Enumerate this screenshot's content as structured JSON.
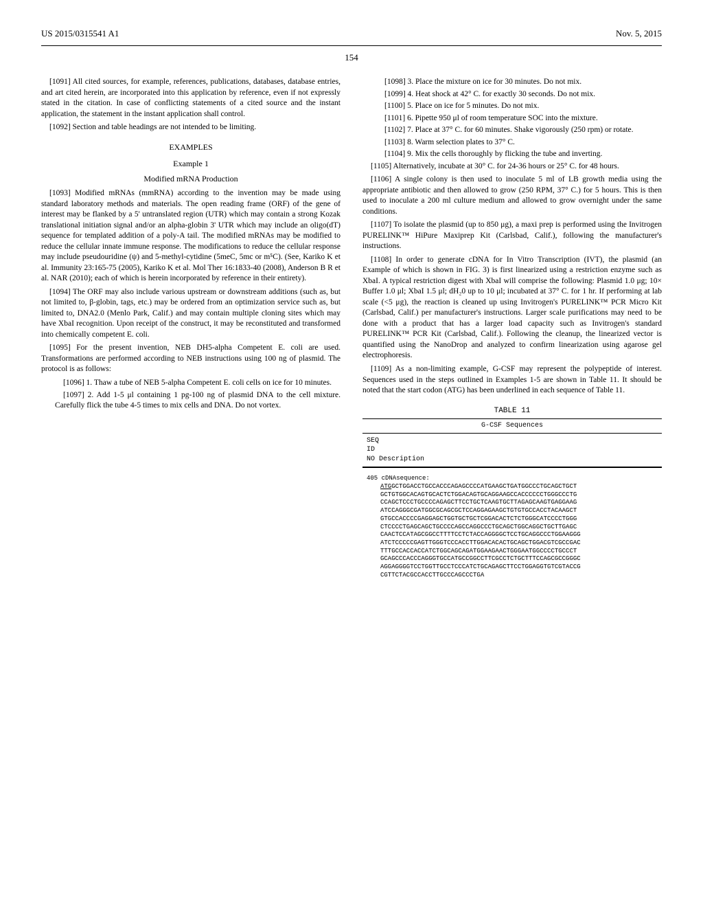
{
  "header": {
    "pub_number": "US 2015/0315541 A1",
    "date": "Nov. 5, 2015"
  },
  "page_number": "154",
  "left_column": {
    "p1091": "[1091]   All cited sources, for example, references, publications, databases, database entries, and art cited herein, are incorporated into this application by reference, even if not expressly stated in the citation. In case of conflicting statements of a cited source and the instant application, the statement in the instant application shall control.",
    "p1092": "[1092]   Section and table headings are not intended to be limiting.",
    "examples_heading": "EXAMPLES",
    "example_heading": "Example 1",
    "example_title": "Modified mRNA Production",
    "p1093": "[1093]   Modified mRNAs (mmRNA) according to the invention may be made using standard laboratory methods and materials. The open reading frame (ORF) of the gene of interest may be flanked by a 5' untranslated region (UTR) which may contain a strong Kozak translational initiation signal and/or an alpha-globin 3' UTR which may include an oligo(dT) sequence for templated addition of a poly-A tail. The modified mRNAs may be modified to reduce the cellular innate immune response. The modifications to reduce the cellular response may include pseudouridine (ψ) and 5-methyl-cytidine (5meC, 5mc or m⁵C). (See, Kariko K et al. Immunity 23:165-75 (2005), Kariko K et al. Mol Ther 16:1833-40 (2008), Anderson B R et al. NAR (2010); each of which is herein incorporated by reference in their entirety).",
    "p1094": "[1094]   The ORF may also include various upstream or downstream additions (such as, but not limited to, β-globin, tags, etc.) may be ordered from an optimization service such as, but limited to, DNA2.0 (Menlo Park, Calif.) and may contain multiple cloning sites which may have XbaI recognition. Upon receipt of the construct, it may be reconstituted and transformed into chemically competent E. coli.",
    "p1095": "[1095]   For the present invention, NEB DH5-alpha Competent E. coli are used. Transformations are performed according to NEB instructions using 100 ng of plasmid. The protocol is as follows:",
    "p1096": "[1096]   1. Thaw a tube of NEB 5-alpha Competent E. coli cells on ice for 10 minutes.",
    "p1097": "[1097]   2. Add 1-5 μl containing 1 pg-100 ng of plasmid DNA to the cell mixture. Carefully flick the tube 4-5 times to mix cells and DNA. Do not vortex."
  },
  "right_column": {
    "p1098": "[1098]   3. Place the mixture on ice for 30 minutes. Do not mix.",
    "p1099": "[1099]   4. Heat shock at 42° C. for exactly 30 seconds. Do not mix.",
    "p1100": "[1100]   5. Place on ice for 5 minutes. Do not mix.",
    "p1101": "[1101]   6. Pipette 950 μl of room temperature SOC into the mixture.",
    "p1102": "[1102]   7. Place at 37° C. for 60 minutes. Shake vigorously (250 rpm) or rotate.",
    "p1103": "[1103]   8. Warm selection plates to 37° C.",
    "p1104": "[1104]   9. Mix the cells thoroughly by flicking the tube and inverting.",
    "p1105": "[1105]   Alternatively, incubate at 30° C. for 24-36 hours or 25° C. for 48 hours.",
    "p1106": "[1106]   A single colony is then used to inoculate 5 ml of LB growth media using the appropriate antibiotic and then allowed to grow (250 RPM, 37° C.) for 5 hours. This is then used to inoculate a 200 ml culture medium and allowed to grow overnight under the same conditions.",
    "p1107": "[1107]   To isolate the plasmid (up to 850 μg), a maxi prep is performed using the Invitrogen PURELINK™ HiPure Maxiprep Kit (Carlsbad, Calif.), following the manufacturer's instructions.",
    "p1108": "[1108]   In order to generate cDNA for In Vitro Transcription (IVT), the plasmid (an Example of which is shown in FIG. 3) is first linearized using a restriction enzyme such as XbaI. A typical restriction digest with XbaI will comprise the following: Plasmid 1.0 μg; 10× Buffer 1.0 μl; XbaI 1.5 μl; dH₂0 up to 10 μl; incubated at 37° C. for 1 hr. If performing at lab scale (<5 μg), the reaction is cleaned up using Invitrogen's PURELINK™ PCR Micro Kit (Carlsbad, Calif.) per manufacturer's instructions. Larger scale purifications may need to be done with a product that has a larger load capacity such as Invitrogen's standard PURELINK™ PCR Kit (Carlsbad, Calif.). Following the cleanup, the linearized vector is quantified using the NanoDrop and analyzed to confirm linearization using agarose gel electrophoresis.",
    "p1109": "[1109]   As a non-limiting example, G-CSF may represent the polypeptide of interest. Sequences used in the steps outlined in Examples 1-5 are shown in Table 11. It should be noted that the start codon (ATG) has been underlined in each sequence of Table 11."
  },
  "table": {
    "caption": "TABLE 11",
    "title": "G-CSF Sequences",
    "head_l1": "SEQ",
    "head_l2": "ID",
    "head_l3": "NO Description",
    "seq_num": "405",
    "seq_label": "cDNAsequence:",
    "underlined": "ATG",
    "lines": [
      "GCTGGACCTGCCACCCAGAGCCCCATGAAGCTGATGGCCCTGCAGCTGCT",
      "GCTGTGGCACAGTGCACTCTGGACAGTGCAGGAAGCCACCCCCCTGGGCCCTG",
      "CCAGCTCCCTGCCCCAGAGCTTCCTGCTCAAGTGCTTAGAGCAAGTGAGGAAG",
      "ATCCAGGGCGATGGCGCAGCGCTCCAGGAGAAGCTGTGTGCCACCTACAAGCT",
      "GTGCCACCCCGAGGAGCTGGTGCTGCTCGGACACTCTCTGGGCATCCCCTGGG",
      "CTCCCCTGAGCAGCTGCCCCAGCCAGGCCCTGCAGCTGGCAGGCTGCTTGAGC",
      "CAACTCCATAGCGGCCTTTTCCTCTACCAGGGGCTCCTGCAGGCCCTGGAAGGG",
      "ATCTCCCCCGAGTTGGGTCCCACCTTGGACACACTGCAGCTGGACGTCGCCGAC",
      "TTTGCCACCACCATCTGGCAGCAGATGGAAGAACTGGGAATGGCCCCTGCCCT",
      "GCAGCCCACCCAGGGTGCCATGCCGGCCTTCGCCTCTGCTTTCCAGCGCCGGGC",
      "AGGAGGGGTCCTGGTTGCCTCCCATCTGCAGAGCTTCCTGGAGGTGTCGTACCG",
      "CGTTCTACGCCACCTTGCCCAGCCCTGA"
    ]
  }
}
